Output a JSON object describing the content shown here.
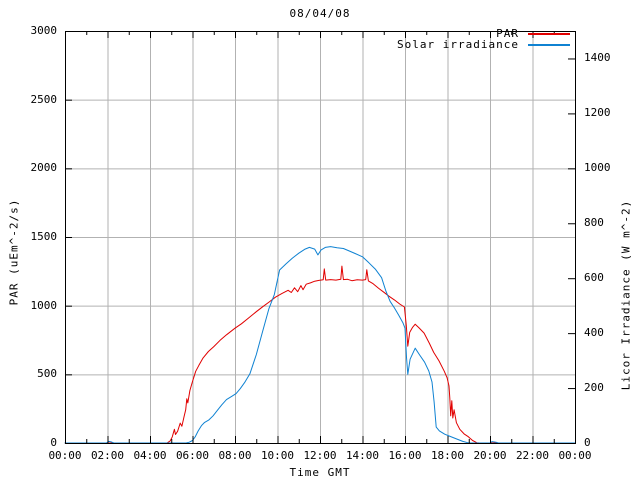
{
  "window": {
    "title": "08/04/08",
    "background": "#ffffff"
  },
  "chart_data": {
    "type": "line",
    "title": "08/04/08",
    "xlabel": "Time GMT",
    "grid": {
      "show": true,
      "color": "#b2b2b2"
    },
    "border_color": "#000000",
    "x_axis": {
      "min_hours": 0,
      "max_hours": 24,
      "major_tick_step_hours": 2,
      "minor_tick_step_hours": 1,
      "tick_labels": [
        "00:00",
        "02:00",
        "04:00",
        "06:00",
        "08:00",
        "10:00",
        "12:00",
        "14:00",
        "16:00",
        "18:00",
        "20:00",
        "22:00",
        "00:00"
      ]
    },
    "y_left": {
      "label": "PAR (uEm^-2/s)",
      "min": 0,
      "max": 3000,
      "tick_step": 500,
      "tick_labels": [
        "0",
        "500",
        "1000",
        "1500",
        "2000",
        "2500",
        "3000"
      ]
    },
    "y_right": {
      "label": "Licor Irradiance (W m^-2)",
      "min": 0,
      "max": 1500,
      "tick_step": 200,
      "tick_labels": [
        "0",
        "200",
        "400",
        "600",
        "800",
        "1000",
        "1200",
        "1400"
      ]
    },
    "legend": [
      {
        "label": "PAR",
        "color": "#e10000"
      },
      {
        "label": "Solar irradiance",
        "color": "#0f82d2"
      }
    ],
    "series": [
      {
        "name": "PAR",
        "axis": "left",
        "color": "#e10000",
        "points": [
          [
            0,
            0
          ],
          [
            4.8,
            0
          ],
          [
            4.95,
            15
          ],
          [
            5.05,
            45
          ],
          [
            5.15,
            100
          ],
          [
            5.2,
            62
          ],
          [
            5.3,
            85
          ],
          [
            5.42,
            145
          ],
          [
            5.5,
            122
          ],
          [
            5.6,
            190
          ],
          [
            5.68,
            242
          ],
          [
            5.73,
            322
          ],
          [
            5.78,
            292
          ],
          [
            5.88,
            382
          ],
          [
            6.0,
            448
          ],
          [
            6.15,
            522
          ],
          [
            6.3,
            566
          ],
          [
            6.5,
            620
          ],
          [
            6.75,
            666
          ],
          [
            7.0,
            702
          ],
          [
            7.3,
            748
          ],
          [
            7.6,
            788
          ],
          [
            8.0,
            836
          ],
          [
            8.3,
            868
          ],
          [
            8.6,
            906
          ],
          [
            9.0,
            956
          ],
          [
            9.3,
            992
          ],
          [
            9.6,
            1026
          ],
          [
            9.9,
            1062
          ],
          [
            10.2,
            1088
          ],
          [
            10.5,
            1112
          ],
          [
            10.65,
            1096
          ],
          [
            10.8,
            1130
          ],
          [
            10.95,
            1102
          ],
          [
            11.1,
            1146
          ],
          [
            11.2,
            1116
          ],
          [
            11.35,
            1156
          ],
          [
            11.55,
            1166
          ],
          [
            11.75,
            1178
          ],
          [
            11.95,
            1184
          ],
          [
            12.15,
            1188
          ],
          [
            12.2,
            1268
          ],
          [
            12.27,
            1186
          ],
          [
            12.5,
            1190
          ],
          [
            12.75,
            1186
          ],
          [
            12.98,
            1192
          ],
          [
            13.03,
            1288
          ],
          [
            13.1,
            1190
          ],
          [
            13.3,
            1192
          ],
          [
            13.5,
            1182
          ],
          [
            13.75,
            1188
          ],
          [
            14.0,
            1186
          ],
          [
            14.15,
            1190
          ],
          [
            14.2,
            1262
          ],
          [
            14.28,
            1180
          ],
          [
            14.5,
            1160
          ],
          [
            14.75,
            1128
          ],
          [
            15.0,
            1098
          ],
          [
            15.25,
            1068
          ],
          [
            15.5,
            1042
          ],
          [
            15.75,
            1012
          ],
          [
            15.97,
            990
          ],
          [
            16.06,
            855
          ],
          [
            16.13,
            705
          ],
          [
            16.22,
            805
          ],
          [
            16.35,
            840
          ],
          [
            16.48,
            865
          ],
          [
            16.65,
            840
          ],
          [
            16.9,
            800
          ],
          [
            17.15,
            725
          ],
          [
            17.35,
            660
          ],
          [
            17.6,
            598
          ],
          [
            17.85,
            522
          ],
          [
            17.98,
            475
          ],
          [
            18.07,
            415
          ],
          [
            18.11,
            328
          ],
          [
            18.15,
            198
          ],
          [
            18.2,
            308
          ],
          [
            18.25,
            182
          ],
          [
            18.31,
            242
          ],
          [
            18.42,
            148
          ],
          [
            18.58,
            100
          ],
          [
            18.78,
            66
          ],
          [
            18.98,
            46
          ],
          [
            19.18,
            18
          ],
          [
            19.38,
            2
          ],
          [
            19.5,
            0
          ],
          [
            24,
            0
          ]
        ]
      },
      {
        "name": "Solar irradiance",
        "axis": "right",
        "color": "#0f82d2",
        "points": [
          [
            0,
            0
          ],
          [
            1.95,
            0
          ],
          [
            2.05,
            6
          ],
          [
            2.18,
            4
          ],
          [
            2.3,
            0
          ],
          [
            5.7,
            0
          ],
          [
            5.85,
            3
          ],
          [
            6.0,
            9
          ],
          [
            6.12,
            22
          ],
          [
            6.27,
            44
          ],
          [
            6.42,
            63
          ],
          [
            6.57,
            75
          ],
          [
            6.77,
            84
          ],
          [
            6.97,
            99
          ],
          [
            7.17,
            119
          ],
          [
            7.38,
            139
          ],
          [
            7.6,
            158
          ],
          [
            7.85,
            170
          ],
          [
            8.05,
            180
          ],
          [
            8.25,
            198
          ],
          [
            8.45,
            220
          ],
          [
            8.7,
            252
          ],
          [
            9.0,
            322
          ],
          [
            9.3,
            406
          ],
          [
            9.6,
            490
          ],
          [
            9.85,
            540
          ],
          [
            10.1,
            630
          ],
          [
            10.4,
            652
          ],
          [
            10.7,
            673
          ],
          [
            11.0,
            691
          ],
          [
            11.3,
            706
          ],
          [
            11.5,
            712
          ],
          [
            11.75,
            706
          ],
          [
            11.9,
            685
          ],
          [
            12.05,
            703
          ],
          [
            12.25,
            712
          ],
          [
            12.5,
            715
          ],
          [
            12.8,
            711
          ],
          [
            13.1,
            708
          ],
          [
            13.38,
            699
          ],
          [
            13.65,
            690
          ],
          [
            14.0,
            678
          ],
          [
            14.3,
            656
          ],
          [
            14.6,
            633
          ],
          [
            14.9,
            602
          ],
          [
            15.1,
            553
          ],
          [
            15.3,
            516
          ],
          [
            15.5,
            492
          ],
          [
            15.7,
            466
          ],
          [
            15.9,
            438
          ],
          [
            16.0,
            418
          ],
          [
            16.07,
            312
          ],
          [
            16.13,
            250
          ],
          [
            16.24,
            305
          ],
          [
            16.48,
            345
          ],
          [
            16.68,
            322
          ],
          [
            16.92,
            294
          ],
          [
            17.12,
            262
          ],
          [
            17.27,
            222
          ],
          [
            17.37,
            150
          ],
          [
            17.47,
            58
          ],
          [
            17.62,
            44
          ],
          [
            17.87,
            32
          ],
          [
            18.12,
            24
          ],
          [
            18.42,
            15
          ],
          [
            18.72,
            6
          ],
          [
            18.95,
            1
          ],
          [
            19.05,
            0
          ],
          [
            20.0,
            0
          ],
          [
            20.1,
            5
          ],
          [
            20.28,
            3
          ],
          [
            20.4,
            0
          ],
          [
            24,
            0
          ]
        ]
      }
    ]
  }
}
